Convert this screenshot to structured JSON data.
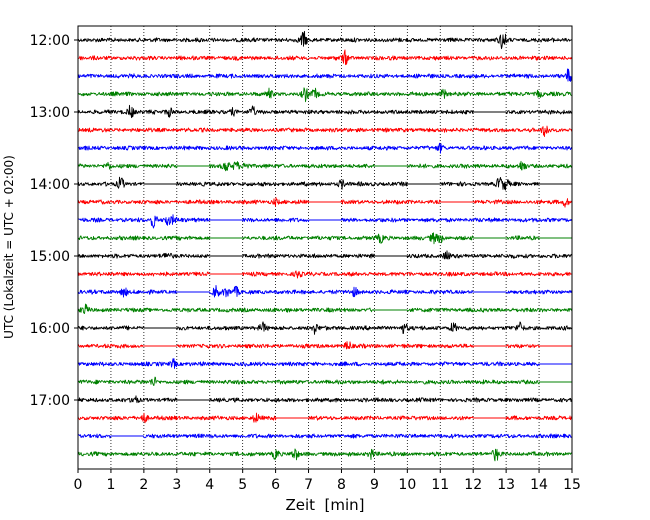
{
  "chart_data": {
    "type": "line",
    "title": "",
    "xlabel": "Zeit  [min]",
    "ylabel": "UTC (Lokalzeit = UTC + 02:00)",
    "xlim": [
      0,
      15
    ],
    "x_ticks": [
      0,
      1,
      2,
      3,
      4,
      5,
      6,
      7,
      8,
      9,
      10,
      11,
      12,
      13,
      14,
      15
    ],
    "x_tick_labels": [
      "0",
      "1",
      "2",
      "3",
      "4",
      "5",
      "6",
      "7",
      "8",
      "9",
      "10",
      "11",
      "12",
      "13",
      "14",
      "15"
    ],
    "y_tick_labels": [
      "12:00",
      "13:00",
      "14:00",
      "15:00",
      "16:00",
      "17:00"
    ],
    "trace_interval_min": 15,
    "grid": {
      "x": true,
      "style": "dotted"
    },
    "colors": [
      "#000000",
      "#ff0000",
      "#0000ff",
      "#008000"
    ],
    "traces": [
      {
        "start": "12:00",
        "color": "#000000",
        "events": [
          [
            6.85,
            5
          ],
          [
            12.9,
            6
          ]
        ],
        "gaps": []
      },
      {
        "start": "12:15",
        "color": "#ff0000",
        "events": [
          [
            8.1,
            4
          ]
        ],
        "gaps": []
      },
      {
        "start": "12:30",
        "color": "#0000ff",
        "events": [
          [
            14.9,
            4
          ]
        ],
        "gaps": []
      },
      {
        "start": "12:45",
        "color": "#008000",
        "events": [
          [
            5.8,
            2.5
          ],
          [
            6.9,
            4
          ],
          [
            7.2,
            2.5
          ],
          [
            11.1,
            2.5
          ],
          [
            14.0,
            2
          ]
        ],
        "gaps": []
      },
      {
        "start": "13:00",
        "color": "#000000",
        "events": [
          [
            1.6,
            4
          ],
          [
            2.8,
            2.5
          ],
          [
            4.7,
            2
          ],
          [
            5.3,
            2.5
          ]
        ],
        "gaps": [
          [
            12.0,
            13.0
          ]
        ]
      },
      {
        "start": "13:15",
        "color": "#ff0000",
        "events": [
          [
            14.2,
            4
          ]
        ],
        "gaps": []
      },
      {
        "start": "13:30",
        "color": "#0000ff",
        "events": [
          [
            11.0,
            2
          ]
        ],
        "gaps": []
      },
      {
        "start": "13:45",
        "color": "#008000",
        "events": [
          [
            0.9,
            2
          ],
          [
            4.5,
            3
          ],
          [
            4.8,
            2.5
          ],
          [
            5.1,
            2.5
          ],
          [
            13.5,
            3
          ]
        ],
        "gaps": [
          [
            3.0,
            4.0
          ],
          [
            9.0,
            10.0
          ]
        ]
      },
      {
        "start": "14:00",
        "color": "#000000",
        "events": [
          [
            1.3,
            3.5
          ],
          [
            8.0,
            2.5
          ],
          [
            12.8,
            4
          ],
          [
            13.0,
            3
          ]
        ],
        "gaps": [
          [
            2.0,
            3.0
          ],
          [
            10.0,
            11.0
          ],
          [
            14.0,
            15.0
          ]
        ]
      },
      {
        "start": "14:15",
        "color": "#ff0000",
        "events": [
          [
            6.0,
            2
          ],
          [
            14.8,
            2.5
          ]
        ],
        "gaps": [
          [
            7.0,
            8.0
          ],
          [
            11.0,
            12.0
          ]
        ]
      },
      {
        "start": "14:30",
        "color": "#0000ff",
        "events": [
          [
            2.3,
            4
          ],
          [
            2.7,
            3
          ],
          [
            2.9,
            2.5
          ]
        ],
        "gaps": [
          [
            4.0,
            5.0
          ],
          [
            7.0,
            8.0
          ]
        ]
      },
      {
        "start": "14:45",
        "color": "#008000",
        "events": [
          [
            9.2,
            2.5
          ],
          [
            10.8,
            2.5
          ],
          [
            11.0,
            2.5
          ]
        ],
        "gaps": [
          [
            4.0,
            5.0
          ],
          [
            12.0,
            13.0
          ],
          [
            14.0,
            15.0
          ]
        ]
      },
      {
        "start": "15:00",
        "color": "#000000",
        "events": [
          [
            2.7,
            2
          ],
          [
            11.2,
            3
          ]
        ],
        "gaps": [
          [
            4.0,
            5.0
          ],
          [
            9.0,
            10.0
          ]
        ]
      },
      {
        "start": "15:15",
        "color": "#ff0000",
        "events": [
          [
            6.7,
            2
          ]
        ],
        "gaps": [
          [
            4.0,
            5.0
          ]
        ]
      },
      {
        "start": "15:30",
        "color": "#0000ff",
        "events": [
          [
            1.4,
            3
          ],
          [
            4.2,
            4
          ],
          [
            4.5,
            3
          ],
          [
            4.8,
            2.5
          ],
          [
            8.4,
            2.5
          ]
        ],
        "gaps": [
          [
            3.0,
            4.0
          ],
          [
            12.0,
            13.0
          ]
        ]
      },
      {
        "start": "15:45",
        "color": "#008000",
        "events": [
          [
            0.2,
            3
          ]
        ],
        "gaps": [
          [
            9.0,
            10.0
          ]
        ]
      },
      {
        "start": "16:00",
        "color": "#000000",
        "events": [
          [
            5.6,
            3
          ],
          [
            7.2,
            3
          ],
          [
            9.9,
            3
          ],
          [
            11.4,
            3
          ],
          [
            13.4,
            3
          ]
        ],
        "gaps": [
          [
            2.0,
            3.0
          ]
        ]
      },
      {
        "start": "16:15",
        "color": "#ff0000",
        "events": [
          [
            8.2,
            2.5
          ]
        ],
        "gaps": [
          [
            2.0,
            3.0
          ],
          [
            12.0,
            13.0
          ],
          [
            14.0,
            15.0
          ]
        ]
      },
      {
        "start": "16:30",
        "color": "#0000ff",
        "events": [
          [
            2.9,
            2.5
          ]
        ],
        "gaps": [
          [
            14.0,
            15.0
          ]
        ]
      },
      {
        "start": "16:45",
        "color": "#008000",
        "events": [
          [
            2.3,
            2.5
          ]
        ],
        "gaps": [
          [
            14.0,
            15.0
          ]
        ]
      },
      {
        "start": "17:00",
        "color": "#000000",
        "events": [
          [
            1.7,
            2.5
          ]
        ],
        "gaps": [
          [
            3.0,
            4.0
          ]
        ]
      },
      {
        "start": "17:15",
        "color": "#ff0000",
        "events": [
          [
            2.0,
            3
          ],
          [
            5.4,
            2.5
          ]
        ],
        "gaps": [
          [
            6.0,
            7.0
          ],
          [
            12.0,
            13.0
          ]
        ]
      },
      {
        "start": "17:30",
        "color": "#0000ff",
        "events": [],
        "gaps": [
          [
            1.0,
            2.0
          ]
        ]
      },
      {
        "start": "17:45",
        "color": "#008000",
        "events": [
          [
            6.0,
            3
          ],
          [
            6.6,
            3
          ],
          [
            8.9,
            3
          ],
          [
            12.7,
            4
          ]
        ],
        "gaps": []
      }
    ]
  }
}
